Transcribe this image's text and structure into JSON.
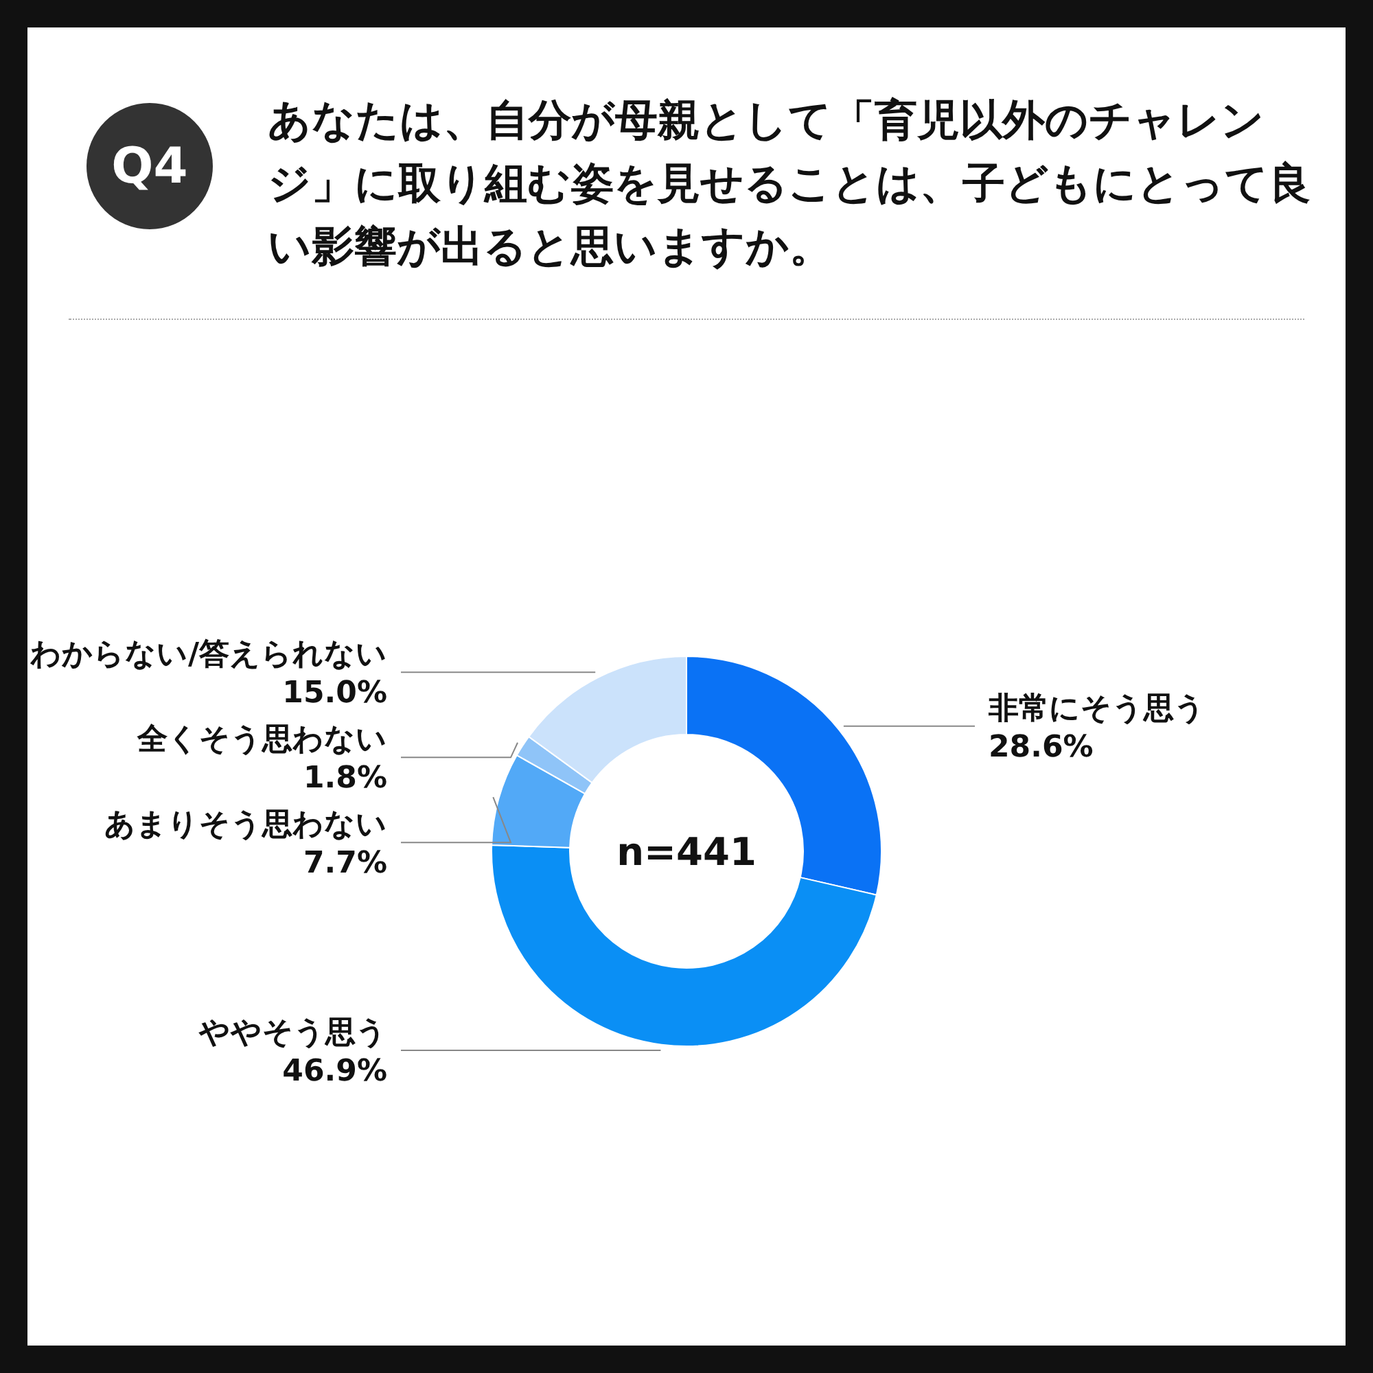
{
  "chart_data": {
    "type": "donut",
    "title": "あなたは、自分が母親として「育児以外のチャレンジ」に取り組む姿を見せることは、子どもにとって良い影響が出ると思いますか。",
    "categories": [
      "非常にそう思う",
      "ややそう思う",
      "あまりそう思わない",
      "全くそう思わない",
      "わからない/答えられない"
    ],
    "values": [
      28.6,
      46.9,
      7.7,
      1.8,
      15.0
    ],
    "colors": [
      "#0a72f5",
      "#0a8ff5",
      "#52a9f7",
      "#8fc4f8",
      "#cbe2fb"
    ],
    "value_labels": [
      "28.6%",
      "46.9%",
      "7.7%",
      "1.8%",
      "15.0%"
    ],
    "annotations": [
      "Q4",
      "n=441"
    ]
  }
}
